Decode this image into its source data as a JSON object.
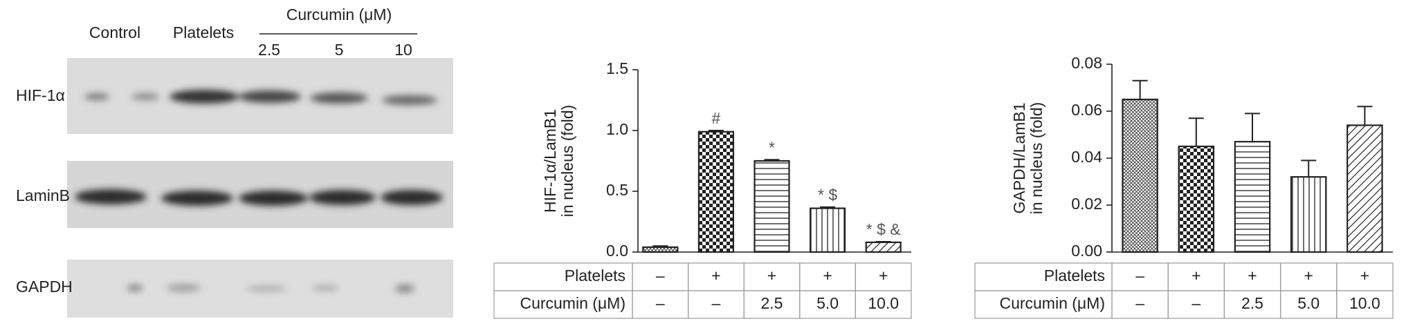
{
  "blot": {
    "group_labels": [
      "Control",
      "Platelets",
      "Curcumin (μM)"
    ],
    "lane_labels": [
      "2.5",
      "5",
      "10"
    ],
    "row_labels": [
      "HIF-1α",
      "LaminB",
      "GAPDH"
    ]
  },
  "chart_data": [
    {
      "type": "bar",
      "y_label": [
        "HIF-1α/LamB1",
        "in nucleus (fold)"
      ],
      "values": [
        0.04,
        0.99,
        0.75,
        0.36,
        0.08
      ],
      "errors": [
        0.01,
        0.01,
        0.01,
        0.01,
        0.005
      ],
      "annotations": [
        null,
        "#",
        "*",
        "* $",
        "* $ &"
      ],
      "color": "#222222",
      "ylim": [
        0,
        1.5
      ],
      "yticks": [
        {
          "value": 0,
          "label": "0.0"
        },
        0.5,
        {
          "value": 1,
          "label": "1.0"
        },
        1.5
      ],
      "table": {
        "rows": [
          [
            "Platelets",
            "–",
            "+",
            "+",
            "+",
            "+"
          ],
          [
            "Curcumin (μM)",
            "–",
            "–",
            "2.5",
            "5.0",
            "10.0"
          ]
        ]
      }
    },
    {
      "type": "bar",
      "y_label": [
        "GAPDH/LamB1",
        "in nucleus (fold)"
      ],
      "values": [
        0.065,
        0.045,
        0.047,
        0.032,
        0.054
      ],
      "errors": [
        0.008,
        0.012,
        0.012,
        0.007,
        0.008
      ],
      "color": "#222222",
      "ylim": [
        0,
        0.08
      ],
      "yticks": [
        {
          "value": 0,
          "label": "0.00"
        },
        0.02,
        0.04,
        0.06,
        0.08
      ],
      "table": {
        "rows": [
          [
            "Platelets",
            "–",
            "+",
            "+",
            "+",
            "+"
          ],
          [
            "Curcumin (μM)",
            "–",
            "–",
            "2.5",
            "5.0",
            "10.0"
          ]
        ]
      }
    }
  ]
}
